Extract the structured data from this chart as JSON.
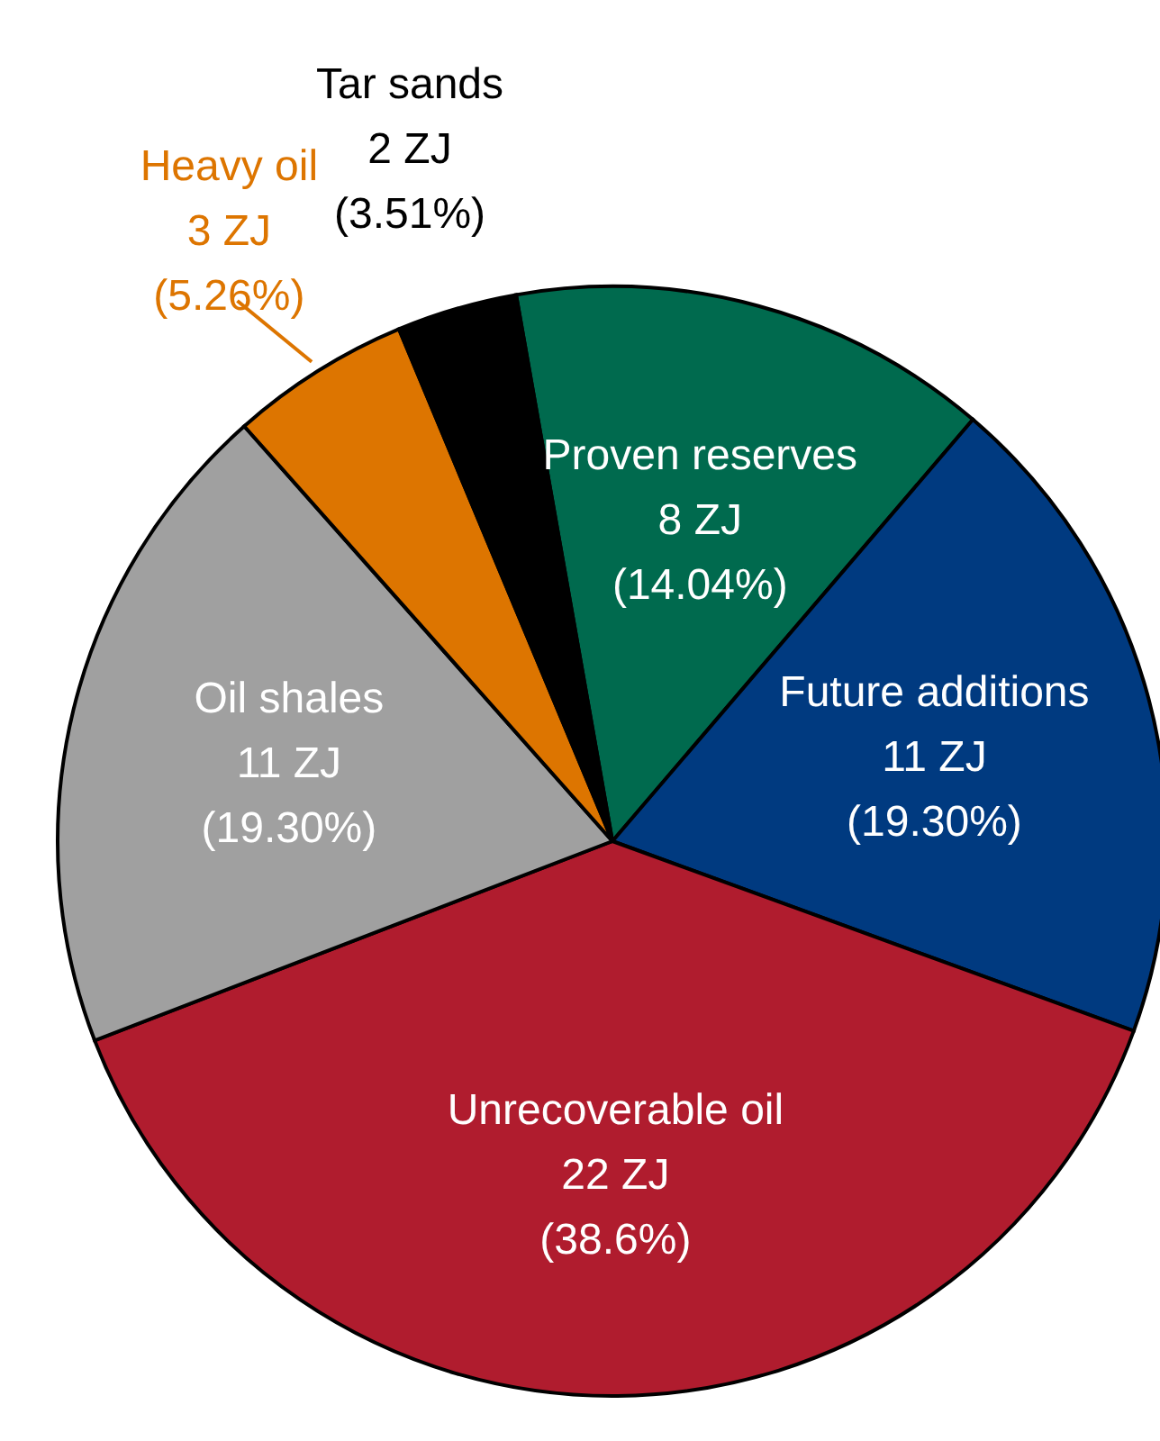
{
  "chart_data": {
    "type": "pie",
    "categories": [
      "Proven reserves",
      "Future additions",
      "Unrecoverable oil",
      "Oil shales",
      "Heavy oil",
      "Tar sands"
    ],
    "values": [
      8,
      11,
      22,
      11,
      3,
      2
    ],
    "value_labels": [
      "8 ZJ\n(14.04%)",
      "11 ZJ\n(19.30%)",
      "22 ZJ\n(38.6%)",
      "11 ZJ\n(19.30%)",
      "3 ZJ\n(5.26%)",
      "2 ZJ\n(3.51%)"
    ],
    "colors": [
      "#006a4e",
      "#003a80",
      "#b01c2e",
      "#a0a0a0",
      "#dd7500",
      "#000000"
    ],
    "legend": false
  }
}
